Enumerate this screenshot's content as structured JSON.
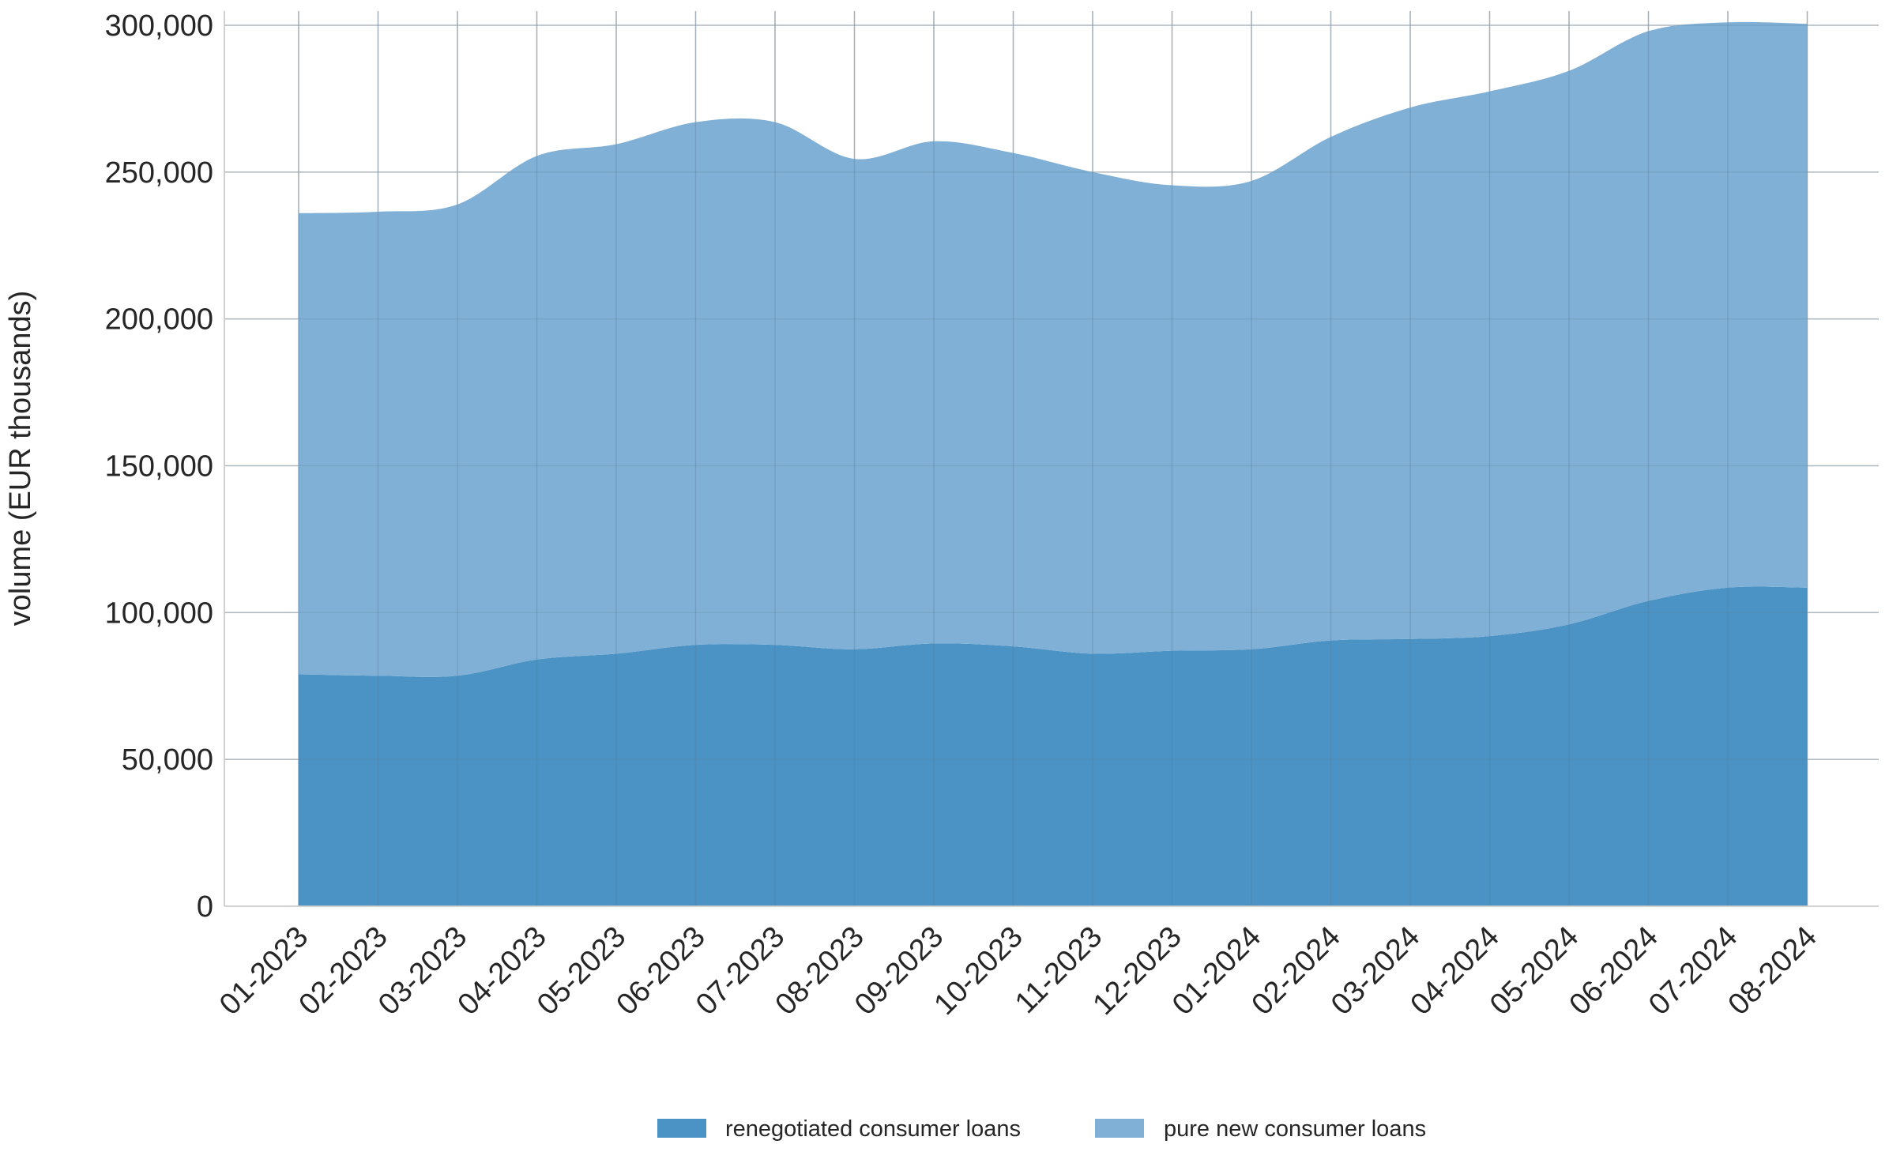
{
  "chart_data": {
    "type": "area",
    "stacked": true,
    "title": "",
    "xlabel": "",
    "ylabel": "volume (EUR thousands)",
    "ylim": [
      0,
      300000
    ],
    "yticks": [
      0,
      50000,
      100000,
      150000,
      200000,
      250000,
      300000
    ],
    "ytick_labels": [
      "0",
      "50,000",
      "100,000",
      "150,000",
      "200,000",
      "250,000",
      "300,000"
    ],
    "x": [
      "01-2023",
      "02-2023",
      "03-2023",
      "04-2023",
      "05-2023",
      "06-2023",
      "07-2023",
      "08-2023",
      "09-2023",
      "10-2023",
      "11-2023",
      "12-2023",
      "01-2024",
      "02-2024",
      "03-2024",
      "04-2024",
      "05-2024",
      "06-2024",
      "07-2024",
      "08-2024"
    ],
    "series": [
      {
        "name": "renegotiated consumer loans",
        "color": "#4a93c4",
        "values": [
          79000,
          78500,
          78500,
          84000,
          86000,
          89000,
          89000,
          87500,
          89500,
          88500,
          86000,
          87000,
          87500,
          90500,
          91000,
          92000,
          96000,
          104000,
          108500,
          108500
        ]
      },
      {
        "name": "pure new consumer loans",
        "color": "#80b0d6",
        "values": [
          157000,
          158000,
          160500,
          171500,
          173500,
          178000,
          178000,
          167000,
          171000,
          168000,
          164000,
          158500,
          159500,
          171500,
          181000,
          185500,
          188500,
          194000,
          192500,
          192000
        ]
      }
    ],
    "grid": true,
    "legend_position": "bottom-center"
  }
}
